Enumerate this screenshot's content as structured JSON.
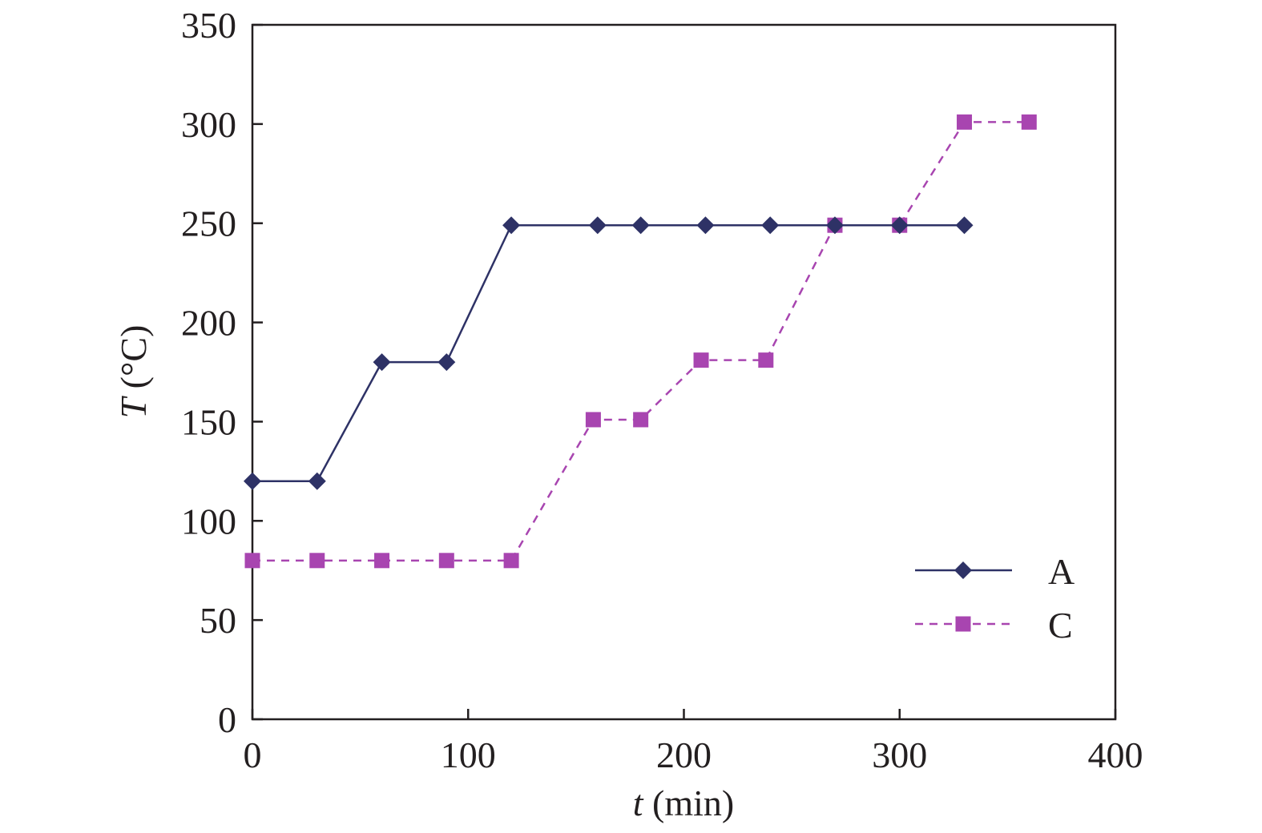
{
  "chart_data": {
    "type": "line",
    "xlabel": {
      "var": "t",
      "unit": " (min)"
    },
    "ylabel": {
      "var": "T",
      "unit": " (°C)"
    },
    "xlim": [
      0,
      400
    ],
    "ylim": [
      0,
      350
    ],
    "xticks": [
      0,
      100,
      200,
      300,
      400
    ],
    "yticks": [
      0,
      50,
      100,
      150,
      200,
      250,
      300,
      350
    ],
    "grid": false,
    "legend_position": "lower-right",
    "series": [
      {
        "name": "A",
        "color": "#2e3266",
        "marker": "diamond",
        "line_style": "solid",
        "x": [
          0,
          30,
          60,
          90,
          120,
          160,
          180,
          210,
          240,
          270,
          300,
          330
        ],
        "y": [
          120,
          120,
          180,
          180,
          249,
          249,
          249,
          249,
          249,
          249,
          249,
          249
        ]
      },
      {
        "name": "C",
        "color": "#a845b0",
        "marker": "square",
        "line_style": "dashed",
        "x": [
          0,
          30,
          60,
          90,
          120,
          158,
          180,
          208,
          238,
          270,
          300,
          330,
          360
        ],
        "y": [
          80,
          80,
          80,
          80,
          80,
          151,
          151,
          181,
          181,
          249,
          249,
          301,
          301
        ]
      }
    ]
  }
}
